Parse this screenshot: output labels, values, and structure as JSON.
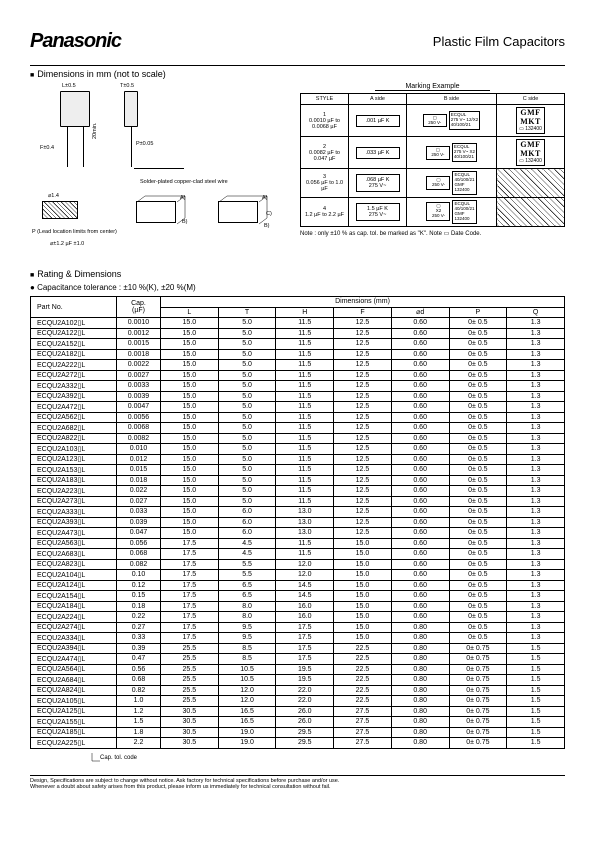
{
  "header": {
    "brand": "Panasonic",
    "doc_title": "Plastic Film Capacitors"
  },
  "section1": {
    "title": "Dimensions in mm (not to scale)",
    "dim_labels": {
      "t": "T±0.5",
      "l": "L±0.5",
      "f": "F±0.4",
      "p": "P±0.05",
      "h": "20min.",
      "phi": "⌀±1.2 µF ±1.0",
      "phi2": "⌀1.4",
      "wire": "Solder-plated copper-clad steel wire",
      "lead_note": "P (Lead location limits from center)"
    },
    "marking": {
      "heading": "Marking Example",
      "cols": [
        "STYLE",
        "A side",
        "B side",
        "C side"
      ],
      "rows": [
        {
          "style_no": "1",
          "range": "0.0010 µF to 0.0068 µF",
          "a": ".001 µF  K",
          "b_top": "ECQUL\n275 V~ 12/X2\n40/100/21",
          "b_icon": "250 V-",
          "c": "132400",
          "c_top": "GMF\nMKT"
        },
        {
          "style_no": "2",
          "range": "0.0082 µF to 0.047 µF",
          "a": ".033 µF  K",
          "b_top": "ECQUL\n275 V~ X2\n40/100/21",
          "b_icon": "250 V-",
          "c": "132400",
          "c_top": "GMF\nMKT"
        },
        {
          "style_no": "3",
          "range": "0.056 µF to 1.0 µF",
          "a": ".068 µF  K\n275 V~",
          "b_top": "ECQUL\n40/100/21\nGMF\n132400",
          "b_icon": "250 V-",
          "c": "",
          "c_top": ""
        },
        {
          "style_no": "4",
          "range": "1.2 µF to 2.2 µF",
          "a": "1.5 µF  K\n275 V~",
          "b_top": "ECQUL\n40/100/21\nGMF\n132400",
          "b_icon": "X2\n250 V-",
          "c": "",
          "c_top": ""
        }
      ],
      "note": "Note : only ±10 % as cap. tol. be marked as \"K\". Note ▭ Date Code."
    }
  },
  "rating": {
    "title": "Rating & Dimensions",
    "tolerance": "Capacitance tolerance : ±10 %(K), ±20 %(M)",
    "columns": [
      "Part No.",
      "Cap.\n(µF)",
      "L",
      "T",
      "H",
      "F",
      "⌀d",
      "P",
      "Q"
    ],
    "dimension_header": "Dimensions (mm)",
    "rows": [
      [
        "ECQU2A102▯L",
        "0.0010",
        "15.0",
        "5.0",
        "11.5",
        "12.5",
        "0.60",
        "0± 0.5",
        "1.3"
      ],
      [
        "ECQU2A122▯L",
        "0.0012",
        "15.0",
        "5.0",
        "11.5",
        "12.5",
        "0.60",
        "0± 0.5",
        "1.3"
      ],
      [
        "ECQU2A152▯L",
        "0.0015",
        "15.0",
        "5.0",
        "11.5",
        "12.5",
        "0.60",
        "0± 0.5",
        "1.3"
      ],
      [
        "ECQU2A182▯L",
        "0.0018",
        "15.0",
        "5.0",
        "11.5",
        "12.5",
        "0.60",
        "0± 0.5",
        "1.3"
      ],
      [
        "ECQU2A222▯L",
        "0.0022",
        "15.0",
        "5.0",
        "11.5",
        "12.5",
        "0.60",
        "0± 0.5",
        "1.3"
      ],
      [
        "ECQU2A272▯L",
        "0.0027",
        "15.0",
        "5.0",
        "11.5",
        "12.5",
        "0.60",
        "0± 0.5",
        "1.3"
      ],
      [
        "ECQU2A332▯L",
        "0.0033",
        "15.0",
        "5.0",
        "11.5",
        "12.5",
        "0.60",
        "0± 0.5",
        "1.3"
      ],
      [
        "ECQU2A392▯L",
        "0.0039",
        "15.0",
        "5.0",
        "11.5",
        "12.5",
        "0.60",
        "0± 0.5",
        "1.3"
      ],
      [
        "ECQU2A472▯L",
        "0.0047",
        "15.0",
        "5.0",
        "11.5",
        "12.5",
        "0.60",
        "0± 0.5",
        "1.3"
      ],
      [
        "ECQU2A562▯L",
        "0.0056",
        "15.0",
        "5.0",
        "11.5",
        "12.5",
        "0.60",
        "0± 0.5",
        "1.3"
      ],
      [
        "ECQU2A682▯L",
        "0.0068",
        "15.0",
        "5.0",
        "11.5",
        "12.5",
        "0.60",
        "0± 0.5",
        "1.3"
      ],
      [
        "ECQU2A822▯L",
        "0.0082",
        "15.0",
        "5.0",
        "11.5",
        "12.5",
        "0.60",
        "0± 0.5",
        "1.3"
      ],
      [
        "ECQU2A103▯L",
        "0.010",
        "15.0",
        "5.0",
        "11.5",
        "12.5",
        "0.60",
        "0± 0.5",
        "1.3"
      ],
      [
        "ECQU2A123▯L",
        "0.012",
        "15.0",
        "5.0",
        "11.5",
        "12.5",
        "0.60",
        "0± 0.5",
        "1.3"
      ],
      [
        "ECQU2A153▯L",
        "0.015",
        "15.0",
        "5.0",
        "11.5",
        "12.5",
        "0.60",
        "0± 0.5",
        "1.3"
      ],
      [
        "ECQU2A183▯L",
        "0.018",
        "15.0",
        "5.0",
        "11.5",
        "12.5",
        "0.60",
        "0± 0.5",
        "1.3"
      ],
      [
        "ECQU2A223▯L",
        "0.022",
        "15.0",
        "5.0",
        "11.5",
        "12.5",
        "0.60",
        "0± 0.5",
        "1.3"
      ],
      [
        "ECQU2A273▯L",
        "0.027",
        "15.0",
        "5.0",
        "11.5",
        "12.5",
        "0.60",
        "0± 0.5",
        "1.3"
      ],
      [
        "ECQU2A333▯L",
        "0.033",
        "15.0",
        "6.0",
        "13.0",
        "12.5",
        "0.60",
        "0± 0.5",
        "1.3"
      ],
      [
        "ECQU2A393▯L",
        "0.039",
        "15.0",
        "6.0",
        "13.0",
        "12.5",
        "0.60",
        "0± 0.5",
        "1.3"
      ],
      [
        "ECQU2A473▯L",
        "0.047",
        "15.0",
        "6.0",
        "13.0",
        "12.5",
        "0.60",
        "0± 0.5",
        "1.3"
      ],
      [
        "ECQU2A563▯L",
        "0.056",
        "17.5",
        "4.5",
        "11.5",
        "15.0",
        "0.60",
        "0± 0.5",
        "1.3"
      ],
      [
        "ECQU2A683▯L",
        "0.068",
        "17.5",
        "4.5",
        "11.5",
        "15.0",
        "0.60",
        "0± 0.5",
        "1.3"
      ],
      [
        "ECQU2A823▯L",
        "0.082",
        "17.5",
        "5.5",
        "12.0",
        "15.0",
        "0.60",
        "0± 0.5",
        "1.3"
      ],
      [
        "ECQU2A104▯L",
        "0.10",
        "17.5",
        "5.5",
        "12.0",
        "15.0",
        "0.60",
        "0± 0.5",
        "1.3"
      ],
      [
        "ECQU2A124▯L",
        "0.12",
        "17.5",
        "6.5",
        "14.5",
        "15.0",
        "0.60",
        "0± 0.5",
        "1.3"
      ],
      [
        "ECQU2A154▯L",
        "0.15",
        "17.5",
        "6.5",
        "14.5",
        "15.0",
        "0.60",
        "0± 0.5",
        "1.3"
      ],
      [
        "ECQU2A184▯L",
        "0.18",
        "17.5",
        "8.0",
        "16.0",
        "15.0",
        "0.60",
        "0± 0.5",
        "1.3"
      ],
      [
        "ECQU2A224▯L",
        "0.22",
        "17.5",
        "8.0",
        "16.0",
        "15.0",
        "0.60",
        "0± 0.5",
        "1.3"
      ],
      [
        "ECQU2A274▯L",
        "0.27",
        "17.5",
        "9.5",
        "17.5",
        "15.0",
        "0.80",
        "0± 0.5",
        "1.3"
      ],
      [
        "ECQU2A334▯L",
        "0.33",
        "17.5",
        "9.5",
        "17.5",
        "15.0",
        "0.80",
        "0± 0.5",
        "1.3"
      ],
      [
        "ECQU2A394▯L",
        "0.39",
        "25.5",
        "8.5",
        "17.5",
        "22.5",
        "0.80",
        "0± 0.75",
        "1.5"
      ],
      [
        "ECQU2A474▯L",
        "0.47",
        "25.5",
        "8.5",
        "17.5",
        "22.5",
        "0.80",
        "0± 0.75",
        "1.5"
      ],
      [
        "ECQU2A564▯L",
        "0.56",
        "25.5",
        "10.5",
        "19.5",
        "22.5",
        "0.80",
        "0± 0.75",
        "1.5"
      ],
      [
        "ECQU2A684▯L",
        "0.68",
        "25.5",
        "10.5",
        "19.5",
        "22.5",
        "0.80",
        "0± 0.75",
        "1.5"
      ],
      [
        "ECQU2A824▯L",
        "0.82",
        "25.5",
        "12.0",
        "22.0",
        "22.5",
        "0.80",
        "0± 0.75",
        "1.5"
      ],
      [
        "ECQU2A105▯L",
        "1.0",
        "25.5",
        "12.0",
        "22.0",
        "22.5",
        "0.80",
        "0± 0.75",
        "1.5"
      ],
      [
        "ECQU2A125▯L",
        "1.2",
        "30.5",
        "16.5",
        "26.0",
        "27.5",
        "0.80",
        "0± 0.75",
        "1.5"
      ],
      [
        "ECQU2A155▯L",
        "1.5",
        "30.5",
        "16.5",
        "26.0",
        "27.5",
        "0.80",
        "0± 0.75",
        "1.5"
      ],
      [
        "ECQU2A185▯L",
        "1.8",
        "30.5",
        "19.0",
        "29.5",
        "27.5",
        "0.80",
        "0± 0.75",
        "1.5"
      ],
      [
        "ECQU2A225▯L",
        "2.2",
        "30.5",
        "19.0",
        "29.5",
        "27.5",
        "0.80",
        "0± 0.75",
        "1.5"
      ]
    ],
    "caption": "Cap. tol. code"
  },
  "footer": {
    "line1": "Design, Specifications are subject to change without notice.    Ask factory for technical specifications before purchase and/or use.",
    "line2": "Whenever a doubt about safety arises from this product, please inform us immediately for technical consultation without fail."
  },
  "style": {
    "page_bg": "#ffffff",
    "text_color": "#000000",
    "border_color": "#000000",
    "font_body": 7,
    "font_brand": 20,
    "font_title": 13
  }
}
